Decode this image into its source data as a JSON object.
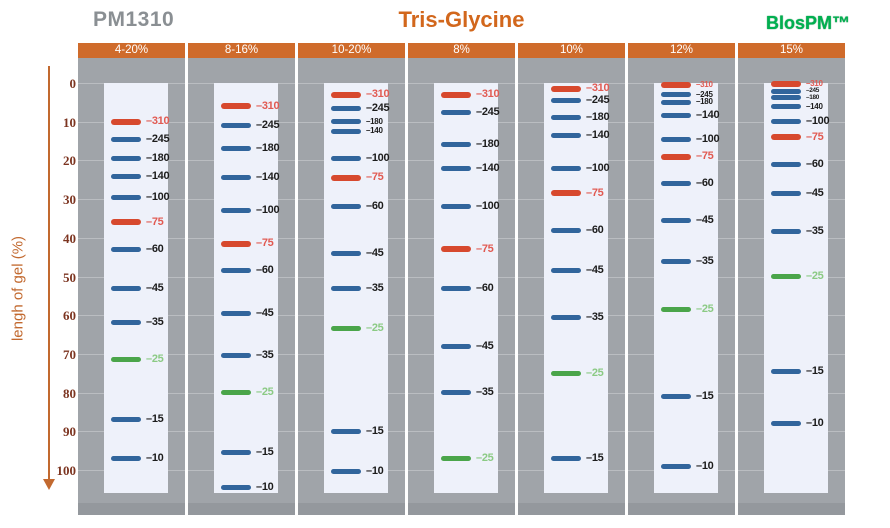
{
  "header": {
    "product": "PM1310",
    "title": "Tris-Glycine",
    "brand": "BlosPM™"
  },
  "chart_data": {
    "type": "gel-migration-ladder",
    "title": "Tris-Glycine",
    "product": "PM1310",
    "brand": "BlosPM™",
    "ylabel": "lengh of gel (%)",
    "yticks": [
      0,
      10,
      20,
      30,
      40,
      50,
      60,
      70,
      80,
      90,
      100
    ],
    "ylim": [
      0,
      100
    ],
    "marker_kda": [
      310,
      245,
      180,
      140,
      100,
      75,
      60,
      45,
      35,
      25,
      15,
      10
    ],
    "band_color_map": {
      "310": "#d7492e",
      "75": "#d7492e",
      "25": "#4aa54a",
      "default": "#31659c"
    },
    "label_color_map": {
      "310": "#e15a52",
      "75": "#e15a52",
      "25": "#8bca84",
      "default": "#1c1c1c"
    },
    "lanes": [
      {
        "label": "4-20%",
        "bands": [
          {
            "kda": 310,
            "pos": 10
          },
          {
            "kda": 245,
            "pos": 14.7
          },
          {
            "kda": 180,
            "pos": 19.5
          },
          {
            "kda": 140,
            "pos": 24.2
          },
          {
            "kda": 100,
            "pos": 29.5
          },
          {
            "kda": 75,
            "pos": 36
          },
          {
            "kda": 60,
            "pos": 43
          },
          {
            "kda": 45,
            "pos": 53
          },
          {
            "kda": 35,
            "pos": 62
          },
          {
            "kda": 25,
            "pos": 71.5
          },
          {
            "kda": 15,
            "pos": 87
          },
          {
            "kda": 10,
            "pos": 97
          }
        ]
      },
      {
        "label": "8-16%",
        "bands": [
          {
            "kda": 310,
            "pos": 6
          },
          {
            "kda": 245,
            "pos": 11
          },
          {
            "kda": 180,
            "pos": 17
          },
          {
            "kda": 140,
            "pos": 24.5
          },
          {
            "kda": 100,
            "pos": 33
          },
          {
            "kda": 75,
            "pos": 41.5
          },
          {
            "kda": 60,
            "pos": 48.5
          },
          {
            "kda": 45,
            "pos": 59.5
          },
          {
            "kda": 35,
            "pos": 70.5
          },
          {
            "kda": 25,
            "pos": 80
          },
          {
            "kda": 15,
            "pos": 95.5
          },
          {
            "kda": 10,
            "pos": 104.5
          }
        ]
      },
      {
        "label": "10-20%",
        "bands": [
          {
            "kda": 310,
            "pos": 3
          },
          {
            "kda": 245,
            "pos": 6.5
          },
          {
            "kda": 180,
            "pos": 10
          },
          {
            "kda": 140,
            "pos": 12.5
          },
          {
            "kda": 100,
            "pos": 19.5
          },
          {
            "kda": 75,
            "pos": 24.5
          },
          {
            "kda": 60,
            "pos": 32
          },
          {
            "kda": 45,
            "pos": 44
          },
          {
            "kda": 35,
            "pos": 53
          },
          {
            "kda": 25,
            "pos": 63.5
          },
          {
            "kda": 15,
            "pos": 90
          },
          {
            "kda": 10,
            "pos": 100.5
          }
        ]
      },
      {
        "label": "8%",
        "bands": [
          {
            "kda": 310,
            "pos": 3
          },
          {
            "kda": 245,
            "pos": 7.5
          },
          {
            "kda": 180,
            "pos": 16
          },
          {
            "kda": 140,
            "pos": 22
          },
          {
            "kda": 100,
            "pos": 32
          },
          {
            "kda": 75,
            "pos": 43
          },
          {
            "kda": 60,
            "pos": 53
          },
          {
            "kda": 45,
            "pos": 68
          },
          {
            "kda": 35,
            "pos": 80
          },
          {
            "kda": 25,
            "pos": 97
          }
        ]
      },
      {
        "label": "10%",
        "bands": [
          {
            "kda": 310,
            "pos": 1.5
          },
          {
            "kda": 245,
            "pos": 4.5
          },
          {
            "kda": 180,
            "pos": 9
          },
          {
            "kda": 140,
            "pos": 13.5
          },
          {
            "kda": 100,
            "pos": 22
          },
          {
            "kda": 75,
            "pos": 28.5
          },
          {
            "kda": 60,
            "pos": 38
          },
          {
            "kda": 45,
            "pos": 48.5
          },
          {
            "kda": 35,
            "pos": 60.5
          },
          {
            "kda": 25,
            "pos": 75
          },
          {
            "kda": 15,
            "pos": 97
          }
        ]
      },
      {
        "label": "12%",
        "bands": [
          {
            "kda": 310,
            "pos": 0.5
          },
          {
            "kda": 245,
            "pos": 3
          },
          {
            "kda": 180,
            "pos": 5
          },
          {
            "kda": 140,
            "pos": 8.5
          },
          {
            "kda": 100,
            "pos": 14.5
          },
          {
            "kda": 75,
            "pos": 19
          },
          {
            "kda": 60,
            "pos": 26
          },
          {
            "kda": 45,
            "pos": 35.5
          },
          {
            "kda": 35,
            "pos": 46
          },
          {
            "kda": 25,
            "pos": 58.5
          },
          {
            "kda": 15,
            "pos": 81
          },
          {
            "kda": 10,
            "pos": 99
          }
        ]
      },
      {
        "label": "15%",
        "bands": [
          {
            "kda": 310,
            "pos": 0.3
          },
          {
            "kda": 245,
            "pos": 2.2
          },
          {
            "kda": 180,
            "pos": 3.8
          },
          {
            "kda": 140,
            "pos": 6.2
          },
          {
            "kda": 100,
            "pos": 10
          },
          {
            "kda": 75,
            "pos": 14
          },
          {
            "kda": 60,
            "pos": 21
          },
          {
            "kda": 45,
            "pos": 28.5
          },
          {
            "kda": 35,
            "pos": 38.5
          },
          {
            "kda": 25,
            "pos": 50
          },
          {
            "kda": 15,
            "pos": 74.5
          },
          {
            "kda": 10,
            "pos": 88
          }
        ]
      }
    ]
  }
}
